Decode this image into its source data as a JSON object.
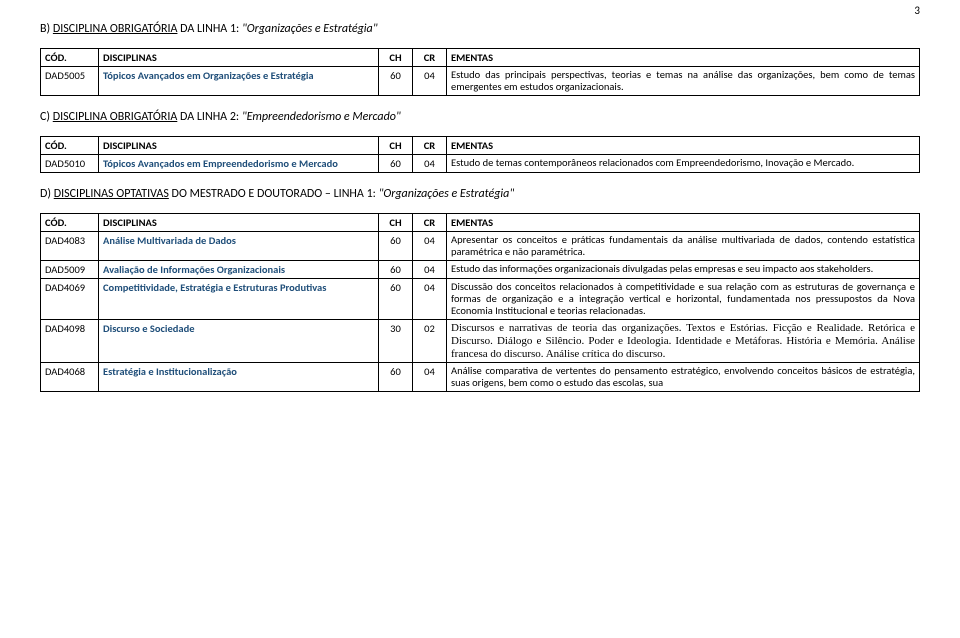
{
  "page_number": "3",
  "colors": {
    "discipline_text": "#1f4e79",
    "border": "#000000",
    "text": "#000000",
    "background": "#ffffff"
  },
  "columns": {
    "cod": "CÓD.",
    "disc": "DISCIPLINAS",
    "ch": "CH",
    "cr": "CR",
    "ementa": "EMENTAS"
  },
  "sections": [
    {
      "heading_prefix": "B) ",
      "heading_underline": "DISCIPLINA OBRIGATÓRIA",
      "heading_rest": " DA LINHA 1: ",
      "heading_italic": "\"Organizações e Estratégia\"",
      "rows": [
        {
          "cod": "DAD5005",
          "disc": "Tópicos Avançados em Organizações e Estratégia",
          "ch": "60",
          "cr": "04",
          "ementa": "Estudo das principais perspectivas, teorias e temas na análise das organizações, bem como de temas emergentes em estudos organizacionais."
        }
      ]
    },
    {
      "heading_prefix": "C) ",
      "heading_underline": "DISCIPLINA OBRIGATÓRIA",
      "heading_rest": " DA LINHA 2: ",
      "heading_italic": "\"Empreendedorismo e Mercado\"",
      "rows": [
        {
          "cod": "DAD5010",
          "disc": "Tópicos Avançados em Empreendedorismo e Mercado",
          "ch": "60",
          "cr": "04",
          "ementa": "Estudo de temas contemporâneos relacionados com Empreendedorismo, Inovação e Mercado."
        }
      ]
    },
    {
      "heading_prefix": "D) ",
      "heading_underline": "DISCIPLINAS OPTATIVAS",
      "heading_rest": " DO MESTRADO E DOUTORADO – LINHA 1: ",
      "heading_italic": "\"Organizações e Estratégia\"",
      "rows": [
        {
          "cod": "DAD4083",
          "disc": "Análise Multivariada de Dados",
          "ch": "60",
          "cr": "04",
          "ementa": "Apresentar os conceitos e práticas fundamentais da análise multivariada de dados, contendo estatística paramétrica e não paramétrica."
        },
        {
          "cod": "DAD5009",
          "disc": "Avaliação de Informações Organizacionais",
          "ch": "60",
          "cr": "04",
          "ementa": "Estudo das informações organizacionais divulgadas pelas empresas e seu impacto aos stakeholders."
        },
        {
          "cod": "DAD4069",
          "disc": "Competitividade, Estratégia e Estruturas Produtivas",
          "ch": "60",
          "cr": "04",
          "ementa": "Discussão dos conceitos relacionados à competitividade e sua relação com as estruturas de governança e formas de organização e a integração vertical e horizontal, fundamentada nos pressupostos da Nova Economia Institucional e teorias relacionadas."
        },
        {
          "cod": "DAD4098",
          "disc": "Discurso e Sociedade",
          "ch": "30",
          "cr": "02",
          "ementa_serif": "Discursos e narrativas de teoria das organizações. Textos e Estórias. Ficção e Realidade. Retórica e Discurso. Diálogo e Silêncio. Poder e Ideologia. Identidade e Metáforas. História e Memória. Análise francesa do discurso. Análise crítica do discurso."
        },
        {
          "cod": "DAD4068",
          "disc": "Estratégia e Institucionalização",
          "ch": "60",
          "cr": "04",
          "ementa": "Análise comparativa de vertentes do pensamento estratégico, envolvendo conceitos básicos de estratégia, suas origens, bem como o estudo das escolas, sua"
        }
      ]
    }
  ]
}
